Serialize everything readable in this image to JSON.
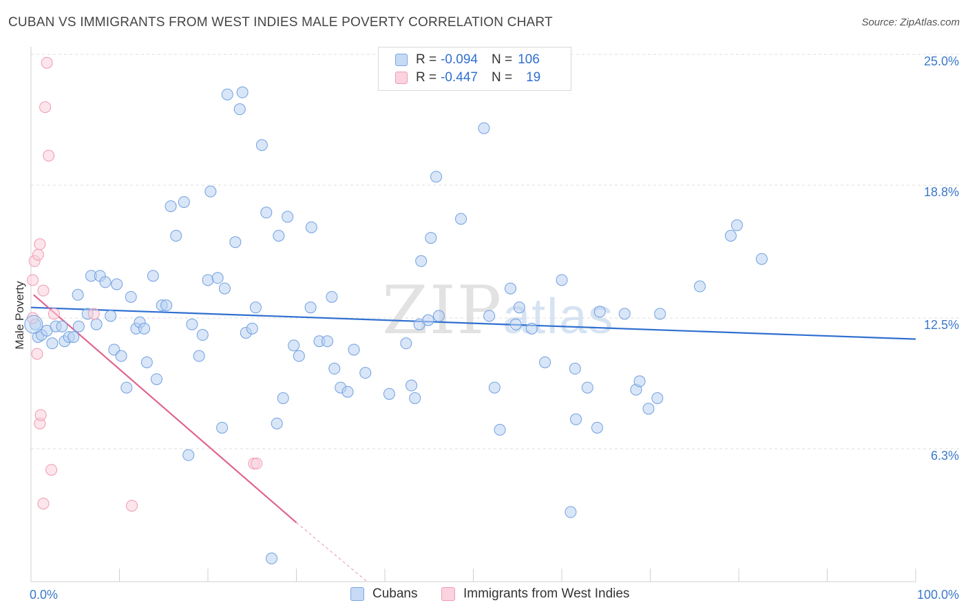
{
  "header": {
    "title": "CUBAN VS IMMIGRANTS FROM WEST INDIES MALE POVERTY CORRELATION CHART",
    "source": "Source: ZipAtlas.com"
  },
  "watermark": {
    "zip": "ZIP",
    "atlas": "atlas"
  },
  "legend": {
    "rows": [
      {
        "r_label": "R =",
        "r_value": "-0.094",
        "n_label": "N =",
        "n_value": "106",
        "color": "#a9c7ef"
      },
      {
        "r_label": "R =",
        "r_value": "-0.447",
        "n_label": "N =",
        "n_value": "19",
        "color": "#f5b8c8"
      }
    ]
  },
  "bottom_legend": {
    "items": [
      {
        "label": "Cubans",
        "color": "#a9c7ef"
      },
      {
        "label": "Immigrants from West Indies",
        "color": "#f5b8c8"
      }
    ]
  },
  "chart_data": {
    "type": "scatter",
    "title": "CUBAN VS IMMIGRANTS FROM WEST INDIES MALE POVERTY CORRELATION CHART",
    "xlabel": "",
    "ylabel": "Male Poverty",
    "xlim": [
      0,
      100
    ],
    "ylim": [
      0,
      25
    ],
    "x_tick_labels": [
      "0.0%",
      "100.0%"
    ],
    "y_ticks": [
      6.3,
      12.5,
      18.8,
      25.0
    ],
    "y_tick_labels": [
      "6.3%",
      "12.5%",
      "18.8%",
      "25.0%"
    ],
    "grid": "horizontal dashed",
    "series": [
      {
        "name": "Cubans",
        "color": "#6f9fe0",
        "fill": "#b9d2f2",
        "trend": {
          "x": [
            0,
            100
          ],
          "y": [
            13.0,
            11.5
          ],
          "color": "#2f6fd0"
        },
        "points": [
          [
            0.5,
            12.2
          ],
          [
            0.8,
            11.6
          ],
          [
            1.2,
            11.7
          ],
          [
            1.8,
            11.9
          ],
          [
            2.4,
            11.3
          ],
          [
            2.8,
            12.1
          ],
          [
            3.5,
            12.1
          ],
          [
            3.8,
            11.4
          ],
          [
            4.3,
            11.6
          ],
          [
            4.8,
            11.6
          ],
          [
            5.4,
            12.1
          ],
          [
            5.3,
            13.6
          ],
          [
            6.4,
            12.7
          ],
          [
            6.8,
            14.5
          ],
          [
            7.4,
            12.2
          ],
          [
            7.8,
            14.5
          ],
          [
            8.4,
            14.2
          ],
          [
            9.0,
            12.6
          ],
          [
            9.4,
            11.0
          ],
          [
            9.7,
            14.1
          ],
          [
            10.2,
            10.7
          ],
          [
            10.8,
            9.2
          ],
          [
            11.3,
            13.5
          ],
          [
            11.9,
            12.0
          ],
          [
            12.3,
            12.3
          ],
          [
            12.8,
            12.0
          ],
          [
            13.1,
            10.4
          ],
          [
            13.8,
            14.5
          ],
          [
            14.2,
            9.6
          ],
          [
            14.8,
            13.1
          ],
          [
            15.3,
            13.1
          ],
          [
            15.8,
            17.8
          ],
          [
            16.4,
            16.4
          ],
          [
            17.3,
            18.0
          ],
          [
            17.8,
            6.0
          ],
          [
            18.2,
            12.2
          ],
          [
            19.0,
            10.7
          ],
          [
            19.4,
            11.7
          ],
          [
            20.0,
            14.3
          ],
          [
            20.3,
            18.5
          ],
          [
            21.1,
            14.4
          ],
          [
            21.6,
            7.3
          ],
          [
            21.9,
            13.9
          ],
          [
            22.2,
            23.1
          ],
          [
            23.1,
            16.1
          ],
          [
            23.6,
            22.4
          ],
          [
            23.9,
            23.2
          ],
          [
            24.3,
            11.8
          ],
          [
            25.0,
            12.0
          ],
          [
            25.4,
            13.0
          ],
          [
            26.1,
            20.7
          ],
          [
            26.6,
            17.5
          ],
          [
            27.2,
            1.1
          ],
          [
            27.8,
            7.5
          ],
          [
            28.0,
            16.4
          ],
          [
            28.5,
            8.7
          ],
          [
            29.0,
            17.3
          ],
          [
            29.7,
            11.2
          ],
          [
            30.3,
            10.7
          ],
          [
            31.6,
            13.0
          ],
          [
            31.7,
            16.8
          ],
          [
            32.6,
            11.4
          ],
          [
            33.5,
            11.4
          ],
          [
            34.0,
            13.5
          ],
          [
            34.3,
            10.1
          ],
          [
            35.0,
            9.2
          ],
          [
            35.8,
            9.0
          ],
          [
            36.5,
            11.0
          ],
          [
            37.8,
            9.9
          ],
          [
            40.5,
            8.9
          ],
          [
            42.4,
            11.3
          ],
          [
            43.0,
            9.3
          ],
          [
            43.4,
            8.7
          ],
          [
            43.9,
            12.2
          ],
          [
            44.1,
            15.2
          ],
          [
            44.9,
            12.4
          ],
          [
            45.2,
            16.3
          ],
          [
            45.8,
            19.2
          ],
          [
            46.1,
            12.6
          ],
          [
            48.6,
            17.2
          ],
          [
            51.2,
            21.5
          ],
          [
            51.8,
            12.6
          ],
          [
            52.4,
            9.2
          ],
          [
            53.0,
            7.2
          ],
          [
            54.2,
            13.9
          ],
          [
            54.8,
            12.2
          ],
          [
            55.2,
            13.0
          ],
          [
            56.6,
            12.0
          ],
          [
            58.1,
            10.4
          ],
          [
            60.0,
            14.3
          ],
          [
            61.0,
            3.3
          ],
          [
            61.5,
            10.1
          ],
          [
            61.6,
            7.7
          ],
          [
            62.9,
            9.2
          ],
          [
            64.0,
            7.3
          ],
          [
            64.3,
            12.8
          ],
          [
            67.1,
            12.7
          ],
          [
            68.4,
            9.1
          ],
          [
            68.8,
            9.5
          ],
          [
            69.8,
            8.2
          ],
          [
            70.8,
            8.7
          ],
          [
            71.1,
            12.7
          ],
          [
            75.6,
            14.0
          ],
          [
            79.1,
            16.4
          ],
          [
            79.8,
            16.9
          ],
          [
            82.6,
            15.3
          ]
        ]
      },
      {
        "name": "Immigrants from West Indies",
        "color": "#ef9ab2",
        "fill": "#f9cfdb",
        "trend": {
          "x": [
            0.3,
            30.0
          ],
          "y": [
            13.6,
            2.8
          ],
          "dashed_to": {
            "x": 38.0,
            "y": 0.0
          },
          "color": "#e0628d"
        },
        "points": [
          [
            0.2,
            14.3
          ],
          [
            0.2,
            12.5
          ],
          [
            0.4,
            15.2
          ],
          [
            0.7,
            10.8
          ],
          [
            0.8,
            15.5
          ],
          [
            1.0,
            16.0
          ],
          [
            1.0,
            7.5
          ],
          [
            1.1,
            7.9
          ],
          [
            1.4,
            13.8
          ],
          [
            1.4,
            3.7
          ],
          [
            1.6,
            22.5
          ],
          [
            1.8,
            24.6
          ],
          [
            2.0,
            20.2
          ],
          [
            2.3,
            5.3
          ],
          [
            2.6,
            12.7
          ],
          [
            7.1,
            12.7
          ],
          [
            11.4,
            3.6
          ],
          [
            25.2,
            5.6
          ],
          [
            25.5,
            5.6
          ]
        ]
      }
    ]
  }
}
